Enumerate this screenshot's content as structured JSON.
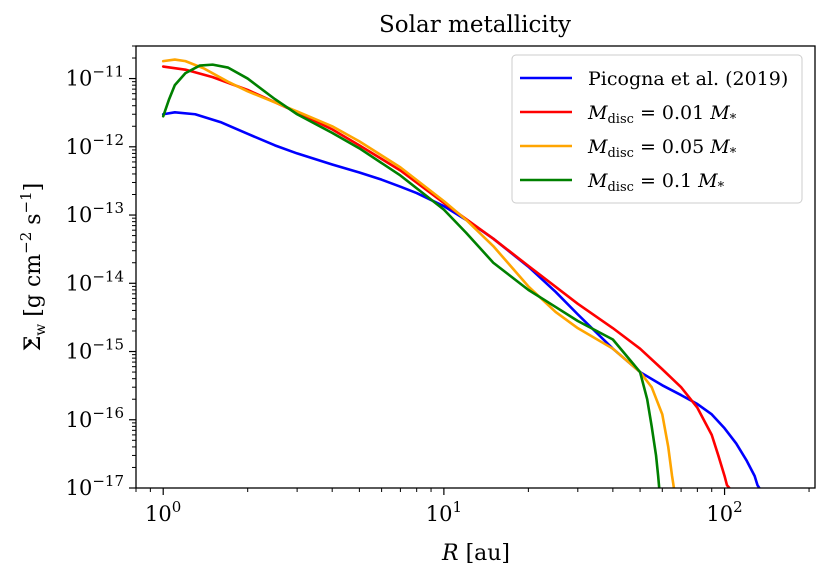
{
  "chart_data": {
    "type": "line",
    "title": "Solar metallicity",
    "xlabel": {
      "symbol": "R",
      "unit": "[au]"
    },
    "ylabel": {
      "symbol": "Σ",
      "sub": "w",
      "unit_prefix": "[g cm",
      "exp1": "−2",
      "mid": " s",
      "exp2": "−1",
      "unit_suffix": "]"
    },
    "xscale": "log",
    "yscale": "log",
    "xlim": [
      0.8,
      210
    ],
    "ylim": [
      1e-17,
      3e-11
    ],
    "x_ticks": [
      {
        "value": 1,
        "base": "10",
        "exp": "0"
      },
      {
        "value": 10,
        "base": "10",
        "exp": "1"
      },
      {
        "value": 100,
        "base": "10",
        "exp": "2"
      }
    ],
    "y_ticks": [
      {
        "value": 1e-17,
        "base": "10",
        "exp": "−17"
      },
      {
        "value": 1e-16,
        "base": "10",
        "exp": "−16"
      },
      {
        "value": 1e-15,
        "base": "10",
        "exp": "−15"
      },
      {
        "value": 1e-14,
        "base": "10",
        "exp": "−14"
      },
      {
        "value": 1e-13,
        "base": "10",
        "exp": "−13"
      },
      {
        "value": 1e-12,
        "base": "10",
        "exp": "−12"
      },
      {
        "value": 1e-11,
        "base": "10",
        "exp": "−11"
      }
    ],
    "legend_position": "top-right",
    "series": [
      {
        "name": "Picogna et al. (2019)",
        "legend": {
          "plain": "Picogna et al. (2019)"
        },
        "color": "#0000ff",
        "x": [
          1.0,
          1.1,
          1.3,
          1.6,
          2,
          2.5,
          3,
          4,
          5,
          6,
          7,
          8,
          10,
          12,
          15,
          20,
          25,
          30,
          40,
          50,
          60,
          70,
          80,
          90,
          100,
          110,
          120,
          128,
          131,
          133
        ],
        "y": [
          3e-12,
          3.2e-12,
          3e-12,
          2.3e-12,
          1.55e-12,
          1.05e-12,
          8e-13,
          5.5e-13,
          4.2e-13,
          3.3e-13,
          2.6e-13,
          2.1e-13,
          1.35e-13,
          8.5e-14,
          4.5e-14,
          1.75e-14,
          7.5e-15,
          3.5e-15,
          1.1e-15,
          5e-16,
          3.2e-16,
          2.3e-16,
          1.7e-16,
          1.2e-16,
          7.5e-17,
          4.5e-17,
          2.5e-17,
          1.5e-17,
          1.1e-17,
          1e-17
        ]
      },
      {
        "name": "M_disc = 0.01 M_*",
        "legend": {
          "lhs": "M",
          "sub": "disc",
          "mid": " = 0.01 ",
          "rhs": "M",
          "rsub": "*"
        },
        "color": "#ff0000",
        "x": [
          1.0,
          1.2,
          1.5,
          2,
          3,
          4,
          5,
          7,
          10,
          15,
          20,
          30,
          40,
          50,
          60,
          70,
          80,
          90,
          95,
          100,
          102,
          104
        ],
        "y": [
          1.5e-11,
          1.35e-11,
          1.05e-11,
          6.8e-12,
          3.2e-12,
          1.8e-12,
          1.05e-12,
          4.5e-13,
          1.5e-13,
          4.5e-14,
          1.8e-14,
          5e-15,
          2.2e-15,
          1.1e-15,
          5.5e-16,
          3e-16,
          1.5e-16,
          6e-17,
          3e-17,
          1.5e-17,
          1.1e-17,
          1e-17
        ]
      },
      {
        "name": "M_disc = 0.05 M_*",
        "legend": {
          "lhs": "M",
          "sub": "disc",
          "mid": " = 0.05 ",
          "rhs": "M",
          "rsub": "*"
        },
        "color": "#ffa500",
        "x": [
          1.0,
          1.1,
          1.2,
          1.4,
          1.7,
          2,
          3,
          4,
          5,
          7,
          10,
          12,
          15,
          20,
          25,
          30,
          40,
          50,
          55,
          60,
          63,
          65,
          66
        ],
        "y": [
          1.8e-11,
          1.9e-11,
          1.8e-11,
          1.4e-11,
          9e-12,
          6.5e-12,
          3.3e-12,
          2e-12,
          1.2e-12,
          5e-13,
          1.6e-13,
          8.5e-14,
          3.5e-14,
          9e-15,
          3.8e-15,
          2.2e-15,
          1.1e-15,
          5e-16,
          3e-16,
          1.2e-16,
          4e-17,
          1.5e-17,
          1e-17
        ]
      },
      {
        "name": "M_disc = 0.1 M_*",
        "legend": {
          "lhs": "M",
          "sub": "disc",
          "mid": " = 0.1 ",
          "rhs": "M",
          "rsub": "*"
        },
        "color": "#008000",
        "x": [
          1.0,
          1.05,
          1.1,
          1.2,
          1.35,
          1.5,
          1.7,
          2,
          2.5,
          3,
          4,
          5,
          7,
          10,
          12,
          15,
          20,
          25,
          30,
          40,
          50,
          53,
          55,
          57,
          58,
          58.5
        ],
        "y": [
          2.8e-12,
          5e-12,
          8e-12,
          1.2e-11,
          1.55e-11,
          1.6e-11,
          1.45e-11,
          1e-11,
          5e-12,
          3e-12,
          1.6e-12,
          9.5e-13,
          3.8e-13,
          1.2e-13,
          5.5e-14,
          2e-14,
          8e-15,
          4.5e-15,
          2.8e-15,
          1.5e-15,
          5e-16,
          2e-16,
          8e-17,
          3e-17,
          1.5e-17,
          1e-17
        ]
      }
    ]
  }
}
